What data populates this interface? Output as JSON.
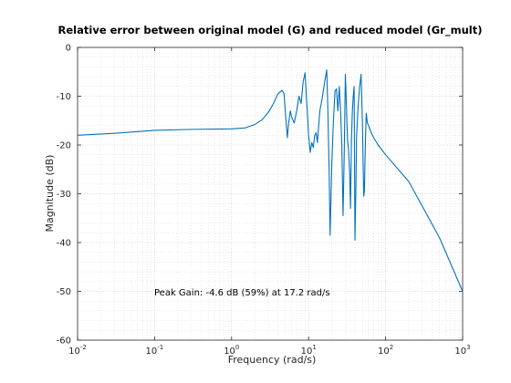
{
  "chart_data": {
    "type": "line",
    "title": "Relative error between original model (G) and reduced model (Gr_mult)",
    "xlabel": "Frequency  (rad/s)",
    "ylabel": "Magnitude (dB)",
    "xscale": "log",
    "xlim": [
      0.01,
      1000
    ],
    "ylim": [
      -60,
      0
    ],
    "xticks": [
      {
        "value": 0.01,
        "base": "10",
        "exp": "-2"
      },
      {
        "value": 0.1,
        "base": "10",
        "exp": "-1"
      },
      {
        "value": 1,
        "base": "10",
        "exp": "0"
      },
      {
        "value": 10,
        "base": "10",
        "exp": "1"
      },
      {
        "value": 100,
        "base": "10",
        "exp": "2"
      },
      {
        "value": 1000,
        "base": "10",
        "exp": "3"
      }
    ],
    "yticks": [
      0,
      -10,
      -20,
      -30,
      -40,
      -50,
      -60
    ],
    "grid": true,
    "minor_grid": true,
    "series": [
      {
        "color": "#0072bd",
        "x": [
          0.01,
          0.03,
          0.1,
          0.3,
          1,
          1.5,
          2,
          2.5,
          3,
          3.5,
          4,
          4.5,
          4.8,
          5,
          5.3,
          5.5,
          5.8,
          6,
          6.5,
          7,
          7.5,
          8,
          8.5,
          9,
          10,
          10.5,
          11,
          11.5,
          12,
          12.5,
          13,
          14,
          15,
          16,
          17.2,
          17.8,
          18.5,
          19,
          20,
          21,
          22,
          23,
          24,
          25,
          26,
          27,
          28,
          29,
          30,
          31,
          32,
          33,
          34,
          35,
          36,
          37,
          38,
          39,
          40,
          41,
          42,
          44,
          46,
          48,
          50,
          52,
          53,
          54,
          55,
          56,
          58,
          60,
          65,
          70,
          80,
          100,
          200,
          500,
          1000
        ],
        "y": [
          -18,
          -17.6,
          -17,
          -16.8,
          -16.7,
          -16.5,
          -15.8,
          -14.8,
          -13.3,
          -11.5,
          -9.5,
          -8.8,
          -9.5,
          -13.5,
          -18.5,
          -15.5,
          -13,
          -14.2,
          -15.5,
          -13,
          -10,
          -11.5,
          -7,
          -5.2,
          -18,
          -21.5,
          -19.5,
          -20.5,
          -18,
          -17.5,
          -19.5,
          -13,
          -10.5,
          -7.5,
          -4.6,
          -13,
          -26,
          -38.5,
          -24,
          -15,
          -9,
          -8.5,
          -13,
          -8,
          -13,
          -20,
          -34.5,
          -22,
          -5.5,
          -12,
          -19,
          -21,
          -25,
          -33,
          -19,
          -13,
          -10,
          -8,
          -39.5,
          -30,
          -18,
          -12,
          -8,
          -5.5,
          -15.5,
          -30.5,
          -29.5,
          -23,
          -18,
          -13.5,
          -15.5,
          -16,
          -17.5,
          -18.5,
          -20,
          -22,
          -27.5,
          -39,
          -50
        ]
      }
    ],
    "annotation": "Peak Gain: -4.6 dB (59%) at 17.2 rad/s"
  }
}
